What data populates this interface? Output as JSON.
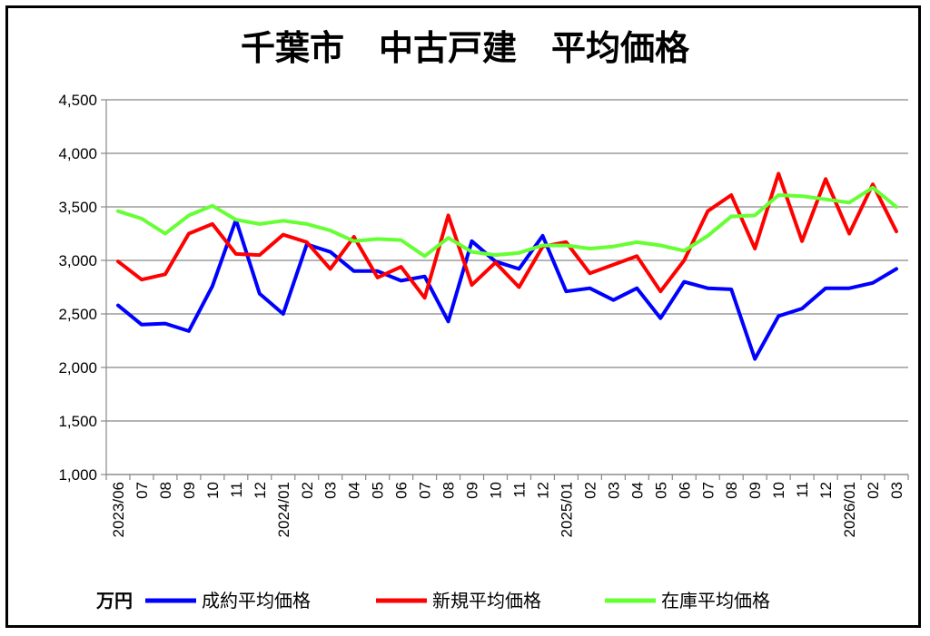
{
  "chart_data": {
    "type": "line",
    "title": "千葉市　中古戸建　平均価格",
    "unit": "万円",
    "ylim": [
      1000,
      4500
    ],
    "yticks": [
      1000,
      1500,
      2000,
      2500,
      3000,
      3500,
      4000,
      4500
    ],
    "ytick_labels": [
      "1,000",
      "1,500",
      "2,000",
      "2,500",
      "3,000",
      "3,500",
      "4,000",
      "4,500"
    ],
    "grid": true,
    "legend": "bottom",
    "categories": [
      "2023/06",
      "07",
      "08",
      "09",
      "10",
      "11",
      "12",
      "2024/01",
      "02",
      "03",
      "04",
      "05",
      "06",
      "07",
      "08",
      "09",
      "10",
      "11",
      "12",
      "2025/01",
      "02",
      "03",
      "04",
      "05",
      "06",
      "07",
      "08",
      "09",
      "10",
      "11",
      "12",
      "2026/01",
      "02",
      "03"
    ],
    "series": [
      {
        "name": "成約平均価格",
        "color": "#0000ff",
        "values": [
          2580,
          2400,
          2410,
          2340,
          2760,
          3380,
          2690,
          2500,
          3150,
          3080,
          2900,
          2900,
          2810,
          2850,
          2430,
          3180,
          2990,
          2920,
          3230,
          2710,
          2740,
          2630,
          2740,
          2460,
          2800,
          2740,
          2730,
          2080,
          2480,
          2550,
          2740,
          2740,
          2790,
          2920
        ]
      },
      {
        "name": "新規平均価格",
        "color": "#ff0000",
        "values": [
          2990,
          2820,
          2870,
          3250,
          3340,
          3060,
          3050,
          3240,
          3170,
          2920,
          3220,
          2840,
          2940,
          2650,
          3420,
          2770,
          2980,
          2750,
          3130,
          3170,
          2880,
          2960,
          3040,
          2710,
          3000,
          3460,
          3610,
          3110,
          3810,
          3180,
          3760,
          3250,
          3710,
          3270
        ]
      },
      {
        "name": "在庫平均価格",
        "color": "#66ff33",
        "values": [
          3460,
          3390,
          3250,
          3420,
          3510,
          3380,
          3340,
          3370,
          3340,
          3280,
          3180,
          3200,
          3190,
          3040,
          3210,
          3080,
          3050,
          3070,
          3140,
          3140,
          3110,
          3130,
          3170,
          3140,
          3090,
          3230,
          3410,
          3420,
          3610,
          3600,
          3570,
          3540,
          3680,
          3500
        ]
      }
    ]
  }
}
